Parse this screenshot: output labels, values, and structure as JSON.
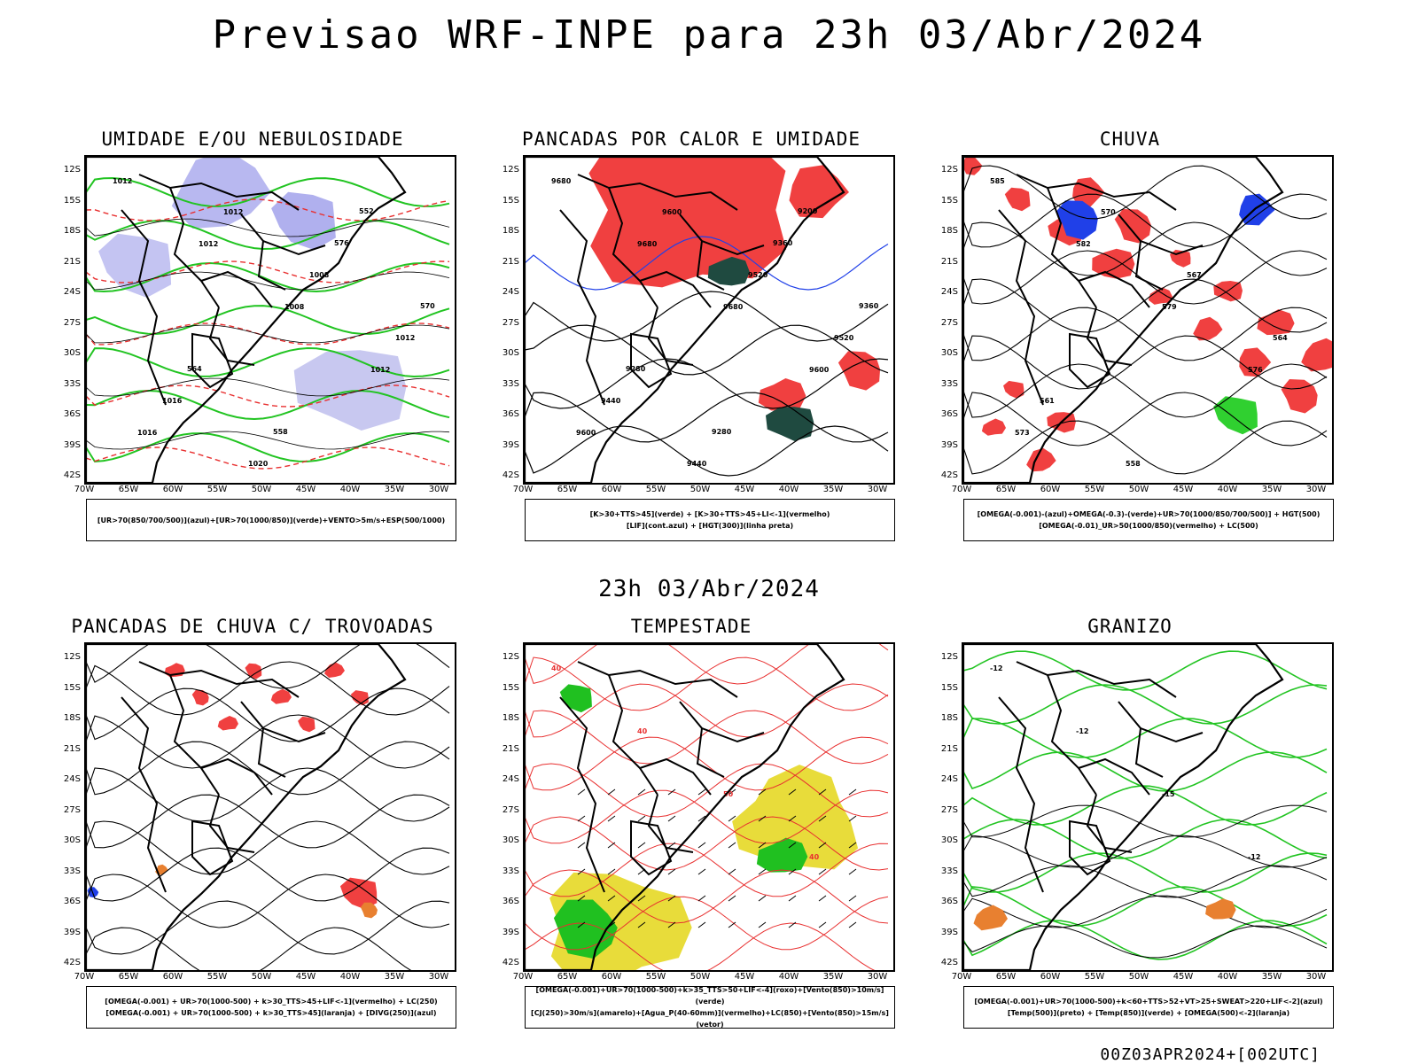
{
  "header": {
    "title": "Previsao WRF-INPE  para 23h 03/Abr/2024",
    "mid_date": "23h 03/Abr/2024",
    "footer": "00Z03APR2024+[002UTC]"
  },
  "axes": {
    "lat_ticks": [
      "12S",
      "15S",
      "18S",
      "21S",
      "24S",
      "27S",
      "30S",
      "33S",
      "36S",
      "39S",
      "42S"
    ],
    "lon_ticks": [
      "70W",
      "65W",
      "60W",
      "55W",
      "50W",
      "45W",
      "40W",
      "35W",
      "30W"
    ]
  },
  "panels": [
    {
      "id": "umidade",
      "title": "UMIDADE E/OU NEBULOSIDADE",
      "legend": [
        "[UR>70(850/700/500)](azul)+[UR>70(1000/850)](verde)+VENTO>5m/s+ESP(500/1000)"
      ],
      "contour_labels": [
        "1012",
        "1012",
        "1008",
        "1012",
        "1016",
        "1012",
        "1008",
        "1012",
        "1016",
        "1020",
        "576",
        "570",
        "564",
        "558",
        "552"
      ]
    },
    {
      "id": "pancadas-calor",
      "title": "PANCADAS POR CALOR E UMIDADE",
      "legend": [
        "[K>30+TTS>45](verde) + [K>30+TTS>45+LI<-1](vermelho)",
        "[LIF](cont.azul) + [HGT(300)](linha preta)"
      ],
      "contour_labels": [
        "9680",
        "9680",
        "9680",
        "9600",
        "9600",
        "9600",
        "9520",
        "9520",
        "9440",
        "9440",
        "9360",
        "9360",
        "9280",
        "9280",
        "9200"
      ]
    },
    {
      "id": "chuva",
      "title": "CHUVA",
      "legend": [
        "[OMEGA(-0.001)-(azul)+OMEGA(-0.3)-(verde)+UR>70(1000/850/700/500)] + HGT(500)",
        "[OMEGA(-0.01)_UR>50(1000/850)(vermelho) + LC(500)"
      ],
      "contour_labels": [
        "585",
        "582",
        "579",
        "576",
        "573",
        "570",
        "567",
        "564",
        "561",
        "558"
      ]
    },
    {
      "id": "pancadas-trovoadas",
      "title": "PANCADAS DE CHUVA C/ TROVOADAS",
      "legend": [
        "[OMEGA(-0.001) + UR>70(1000-500) + k>30_TTS>45+LIF<-1](vermelho) + LC(250)",
        "[OMEGA(-0.001) + UR>70(1000-500) + k>30_TTS>45](laranja) + [DIVG(250)](azul)"
      ],
      "contour_labels": []
    },
    {
      "id": "tempestade",
      "title": "TEMPESTADE",
      "legend": [
        "[OMEGA(-0.001)+UR>70(1000-500)+k>35_TTS>50+LIF<-4](roxo)+[Vento(850)>10m/s](verde)",
        "[CJ(250)>30m/s](amarelo)+[Agua_P(40-60mm)](vermelho)+LC(850)+[Vento(850)>15m/s](vetor)"
      ],
      "contour_labels": [
        "40",
        "40",
        "50",
        "40"
      ]
    },
    {
      "id": "granizo",
      "title": "GRANIZO",
      "legend": [
        "[OMEGA(-0.001)+UR>70(1000-500)+k<60+TTS>52+VT>25+SWEAT>220+LIF<-2](azul)",
        "[Temp(500)](preto) + [Temp(850)](verde) + [OMEGA(500)<-2](laranja)"
      ],
      "contour_labels": [
        "-12",
        "-12",
        "-15",
        "-12"
      ]
    }
  ]
}
